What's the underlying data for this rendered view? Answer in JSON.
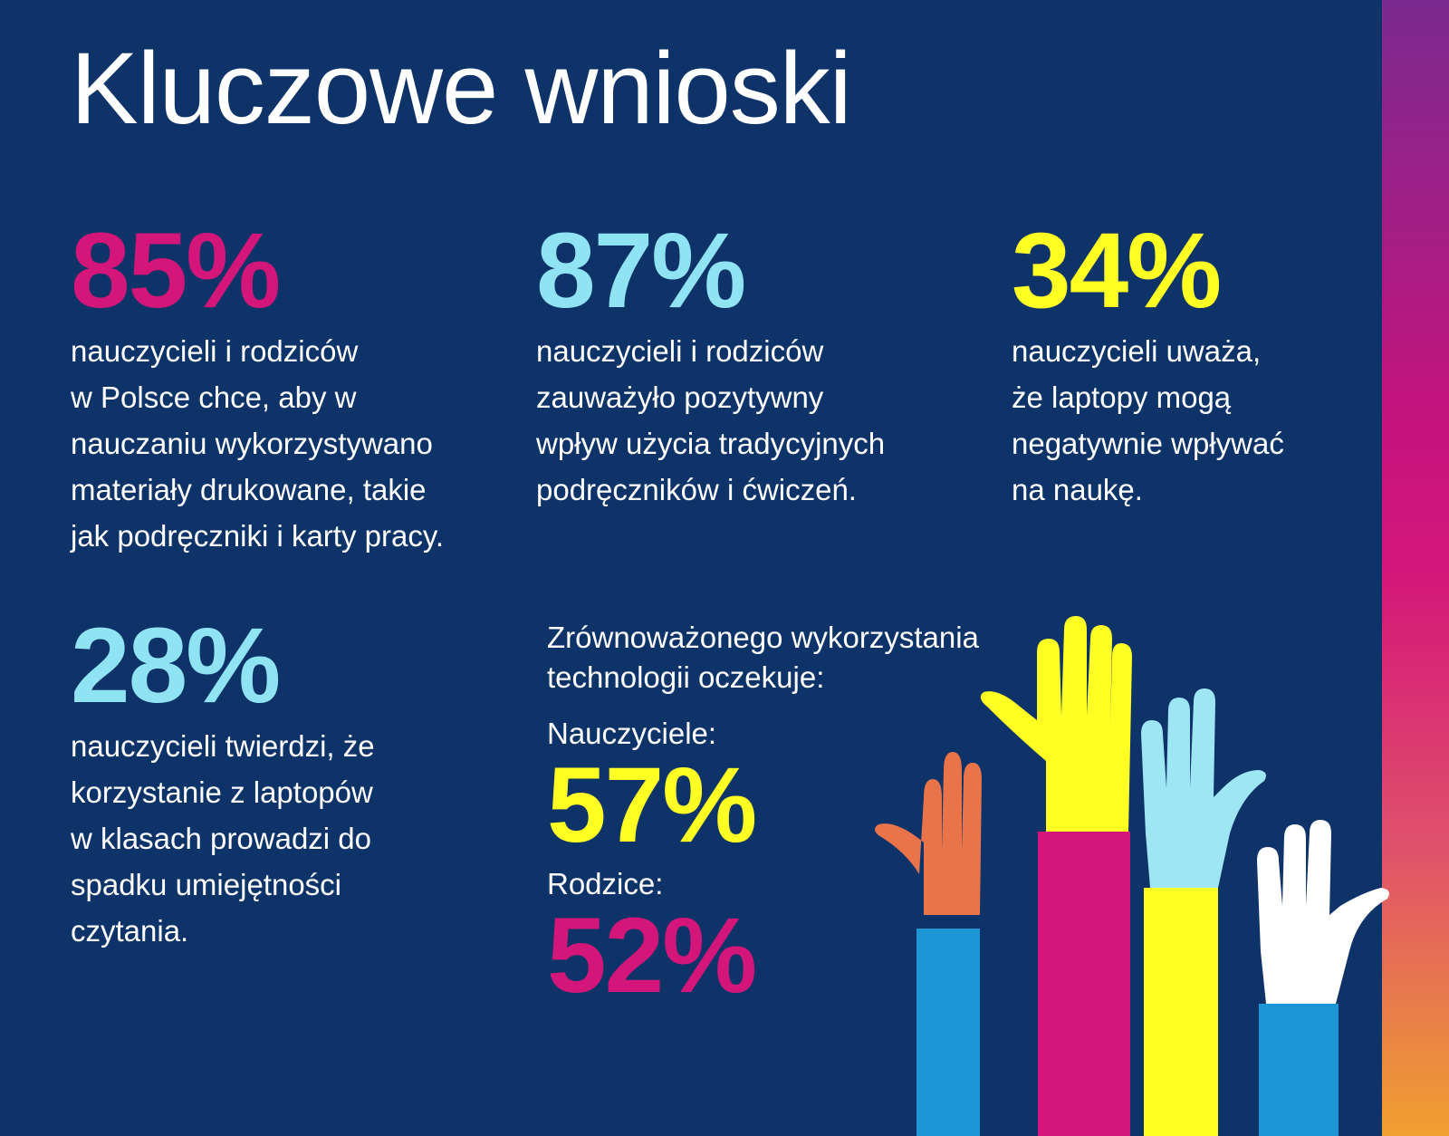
{
  "title": "Kluczowe wnioski",
  "colors": {
    "background": "#0e3369",
    "magenta": "#d4157a",
    "cyan": "#8fe3f2",
    "yellow": "#ffff24",
    "white": "#ffffff"
  },
  "stats": [
    {
      "value": "85%",
      "color": "#d4157a",
      "text": "nauczycieli i rodziców\nw Polsce chce, aby w\nnauczaniu wykorzystywano\nmateriały drukowane, takie\njak podręczniki i karty pracy."
    },
    {
      "value": "87%",
      "color": "#8fe3f2",
      "text": "nauczycieli i rodziców\nzauważyło pozytywny\nwpływ użycia tradycyjnych\npodręczników i ćwiczeń."
    },
    {
      "value": "34%",
      "color": "#ffff24",
      "text": "nauczycieli uważa,\nże laptopy mogą\nnegatywnie wpływać\nna naukę."
    },
    {
      "value": "28%",
      "color": "#8fe3f2",
      "text": "nauczycieli twierdzi, że\nkorzystanie z laptopów\nw klasach prowadzi do\nspadku umiejętności\nczytania."
    }
  ],
  "expectation": {
    "intro": "Zrównoważonego wykorzystania\ntechnologii oczekuje:",
    "teachers_label": "Nauczyciele:",
    "teachers_value": "57%",
    "parents_label": "Rodzice:",
    "parents_value": "52%"
  }
}
